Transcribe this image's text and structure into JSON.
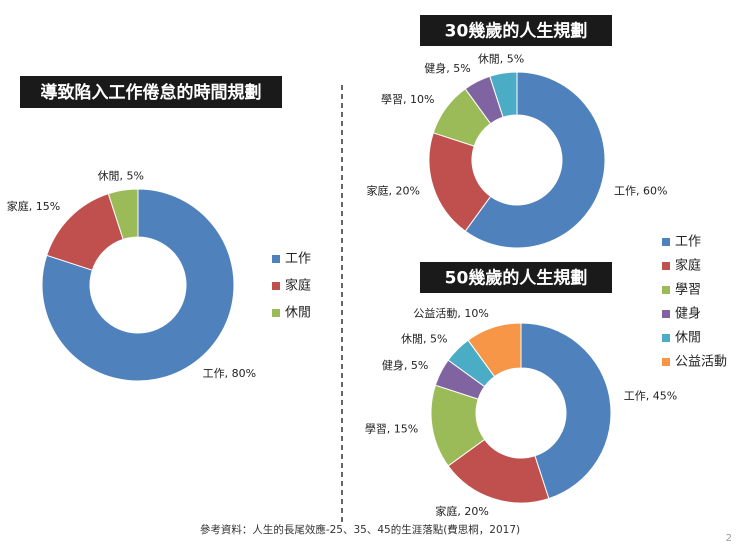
{
  "chart_data": [
    {
      "type": "donut",
      "title": "導致陷入工作倦怠的時間規劃",
      "categories": [
        "工作",
        "家庭",
        "休閒"
      ],
      "values": [
        80,
        15,
        5
      ],
      "value_labels": [
        "工作, 80%",
        "家庭, 15%",
        "休閒, 5%"
      ],
      "colors": [
        "#4f81bd",
        "#c0504d",
        "#9bbb59"
      ],
      "legend": true
    },
    {
      "type": "donut",
      "title": "30幾歲的人生規劃",
      "categories": [
        "工作",
        "家庭",
        "學習",
        "健身",
        "休閒"
      ],
      "values": [
        60,
        20,
        10,
        5,
        5
      ],
      "value_labels": [
        "工作, 60%",
        "家庭, 20%",
        "學習, 10%",
        "健身, 5%",
        "休閒, 5%"
      ],
      "colors": [
        "#4f81bd",
        "#c0504d",
        "#9bbb59",
        "#8064a2",
        "#4bacc6"
      ],
      "legend": false
    },
    {
      "type": "donut",
      "title": "50幾歲的人生規劃",
      "categories": [
        "工作",
        "家庭",
        "學習",
        "健身",
        "休閒",
        "公益活動"
      ],
      "values": [
        45,
        20,
        15,
        5,
        5,
        10
      ],
      "value_labels": [
        "工作, 45%",
        "家庭, 20%",
        "學習, 15%",
        "健身, 5%",
        "休閒, 5%",
        "公益活動, 10%"
      ],
      "colors": [
        "#4f81bd",
        "#c0504d",
        "#9bbb59",
        "#8064a2",
        "#4bacc6",
        "#f79646"
      ],
      "legend": true
    }
  ],
  "footer": "參考資料：人生的長尾效應-25、35、45的生涯落點(費思桐，2017)",
  "page_number": "2"
}
